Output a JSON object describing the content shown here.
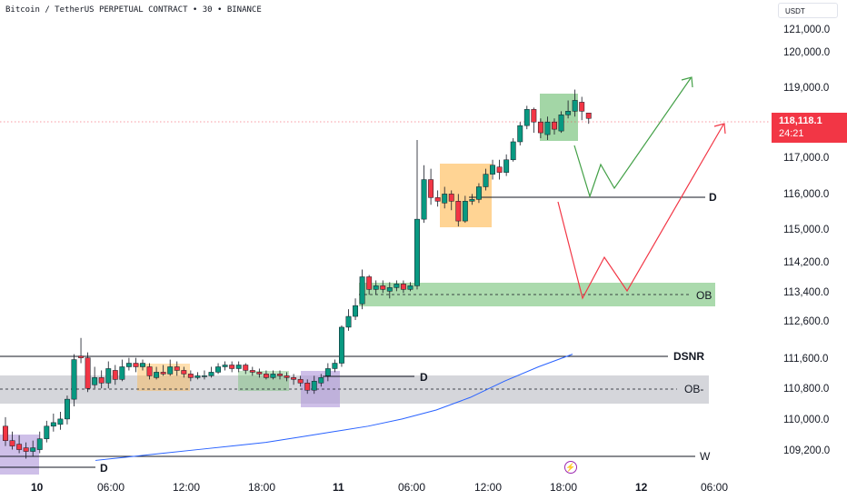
{
  "header": {
    "title": "Bitcoin / TetherUS PERPETUAL CONTRACT • 30 • BINANCE",
    "currency": "USDT"
  },
  "price_badge": {
    "price": "118,118.1",
    "countdown": "24:21"
  },
  "y_axis": [
    "121,000.0",
    "120,000.0",
    "119,000.0",
    "117,000.0",
    "116,000.0",
    "115,000.0",
    "114,200.0",
    "113,400.0",
    "112,600.0",
    "111,600.0",
    "110,800.0",
    "110,000.0",
    "109,200.0"
  ],
  "x_axis": [
    {
      "label": "10",
      "bold": true
    },
    {
      "label": "06:00",
      "bold": false
    },
    {
      "label": "12:00",
      "bold": false
    },
    {
      "label": "18:00",
      "bold": false
    },
    {
      "label": "11",
      "bold": true
    },
    {
      "label": "06:00",
      "bold": false
    },
    {
      "label": "12:00",
      "bold": false
    },
    {
      "label": "18:00",
      "bold": false
    },
    {
      "label": "12",
      "bold": true
    },
    {
      "label": "06:00",
      "bold": false
    }
  ],
  "levels": {
    "d_upper": "D",
    "ob_upper": "OB",
    "dsnr": "DSNR",
    "d_mid": "D",
    "ob_minus": "OB-",
    "w": "W",
    "d_low": "D"
  },
  "colors": {
    "up": "#089981",
    "down": "#f23645",
    "green_zone": "#66bb6a",
    "orange_zone": "#ffb74d",
    "purple_zone": "#b39ddb",
    "grey_zone": "#b2b5be",
    "ma_line": "#2962ff",
    "bull_path": "#43a047",
    "bear_path": "#f23645"
  },
  "icons": {
    "event": "lightning-icon"
  },
  "chart_data": {
    "type": "candlestick",
    "title": "Bitcoin / TetherUS PERPETUAL CONTRACT • 30 • BINANCE",
    "timeframe": "30",
    "last_price": 118118.1,
    "levels": [
      {
        "name": "D",
        "price": 116050
      },
      {
        "name": "OB",
        "price": 113400
      },
      {
        "name": "DSNR",
        "price": 111700
      },
      {
        "name": "D",
        "price": 111200
      },
      {
        "name": "OB-",
        "price": 110800
      },
      {
        "name": "W",
        "price": 109200
      },
      {
        "name": "D",
        "price": 109000
      }
    ],
    "ylim": [
      108600,
      121200
    ],
    "candles": [
      [
        109.55,
        109.15,
        109.8,
        109.0
      ],
      [
        109.15,
        109.0,
        109.4,
        108.9
      ],
      [
        109.05,
        108.9,
        109.3,
        108.8
      ],
      [
        108.95,
        108.85,
        109.1,
        108.65
      ],
      [
        108.85,
        108.95,
        109.15,
        108.7
      ],
      [
        108.9,
        109.2,
        109.4,
        108.8
      ],
      [
        109.2,
        109.55,
        109.7,
        109.1
      ],
      [
        109.55,
        109.65,
        109.9,
        109.4
      ],
      [
        109.6,
        109.75,
        109.95,
        109.45
      ],
      [
        109.75,
        110.3,
        110.4,
        109.6
      ],
      [
        110.3,
        111.4,
        111.55,
        110.1
      ],
      [
        111.5,
        111.45,
        112.0,
        111.3
      ],
      [
        111.45,
        110.6,
        111.6,
        110.5
      ],
      [
        110.7,
        110.9,
        111.2,
        110.6
      ],
      [
        110.9,
        110.75,
        111.1,
        110.6
      ],
      [
        110.75,
        111.15,
        111.35,
        110.6
      ],
      [
        111.1,
        110.85,
        111.25,
        110.7
      ],
      [
        110.85,
        111.2,
        111.4,
        110.8
      ],
      [
        111.2,
        111.3,
        111.45,
        111.1
      ],
      [
        111.3,
        111.2,
        111.45,
        111.05
      ],
      [
        111.2,
        111.3,
        111.4,
        111.1
      ],
      [
        111.2,
        110.95,
        111.3,
        110.85
      ],
      [
        110.9,
        111.05,
        111.2,
        110.85
      ],
      [
        111.05,
        111.0,
        111.25,
        110.95
      ],
      [
        111.0,
        111.2,
        111.4,
        110.95
      ],
      [
        111.2,
        111.1,
        111.35,
        110.95
      ],
      [
        111.1,
        111.0,
        111.2,
        110.9
      ],
      [
        111.0,
        110.9,
        111.1,
        110.8
      ],
      [
        110.9,
        110.95,
        111.05,
        110.85
      ],
      [
        110.95,
        110.95,
        111.1,
        110.85
      ],
      [
        110.95,
        111.05,
        111.2,
        110.9
      ],
      [
        111.05,
        111.2,
        111.3,
        111.0
      ],
      [
        111.2,
        111.25,
        111.35,
        111.1
      ],
      [
        111.25,
        111.15,
        111.35,
        111.05
      ],
      [
        111.15,
        111.25,
        111.35,
        111.05
      ],
      [
        111.25,
        111.1,
        111.3,
        111.0
      ],
      [
        111.1,
        111.05,
        111.2,
        110.95
      ],
      [
        111.05,
        111.0,
        111.15,
        110.9
      ],
      [
        111.0,
        110.9,
        111.1,
        110.85
      ],
      [
        110.9,
        111.0,
        111.1,
        110.85
      ],
      [
        111.0,
        110.95,
        111.1,
        110.85
      ],
      [
        110.95,
        110.9,
        111.05,
        110.8
      ],
      [
        110.9,
        110.85,
        111.0,
        110.7
      ],
      [
        110.85,
        110.75,
        110.95,
        110.65
      ],
      [
        110.75,
        110.55,
        110.85,
        110.45
      ],
      [
        110.55,
        110.8,
        110.95,
        110.45
      ],
      [
        110.75,
        110.9,
        111.0,
        110.65
      ],
      [
        110.95,
        111.15,
        111.3,
        110.8
      ],
      [
        111.15,
        111.3,
        111.4,
        111.05
      ],
      [
        111.3,
        112.3,
        112.35,
        111.2
      ],
      [
        112.3,
        112.6,
        112.8,
        112.2
      ],
      [
        112.6,
        112.9,
        113.1,
        112.5
      ],
      [
        112.95,
        113.7,
        113.9,
        112.8
      ],
      [
        113.7,
        113.35,
        113.75,
        113.2
      ],
      [
        113.35,
        113.45,
        113.6,
        113.2
      ],
      [
        113.45,
        113.35,
        113.6,
        113.25
      ],
      [
        113.3,
        113.4,
        113.55,
        113.1
      ],
      [
        113.4,
        113.5,
        113.6,
        113.3
      ],
      [
        113.5,
        113.35,
        113.6,
        113.25
      ],
      [
        113.35,
        113.45,
        113.55,
        113.3
      ],
      [
        113.45,
        115.3,
        117.5,
        113.35
      ],
      [
        115.3,
        116.4,
        116.8,
        115.2
      ],
      [
        116.4,
        115.9,
        116.7,
        115.7
      ],
      [
        115.9,
        115.8,
        116.1,
        115.65
      ],
      [
        115.75,
        116.0,
        116.2,
        115.6
      ],
      [
        116.0,
        115.8,
        116.1,
        115.55
      ],
      [
        115.8,
        115.25,
        116.0,
        115.1
      ],
      [
        115.25,
        115.8,
        115.95,
        115.2
      ],
      [
        115.8,
        115.85,
        116.0,
        115.7
      ],
      [
        115.85,
        116.2,
        116.3,
        115.75
      ],
      [
        116.2,
        116.55,
        116.7,
        116.1
      ],
      [
        116.55,
        116.8,
        116.95,
        116.4
      ],
      [
        116.75,
        116.6,
        116.95,
        116.4
      ],
      [
        116.6,
        116.95,
        117.1,
        116.5
      ],
      [
        116.95,
        117.45,
        117.55,
        116.9
      ],
      [
        117.45,
        117.9,
        118.0,
        117.35
      ],
      [
        117.9,
        118.35,
        118.45,
        117.8
      ],
      [
        118.35,
        118.0,
        118.4,
        117.7
      ],
      [
        118.0,
        117.7,
        118.1,
        117.55
      ],
      [
        117.65,
        118.0,
        118.15,
        117.5
      ],
      [
        118.0,
        117.8,
        118.1,
        117.65
      ],
      [
        117.75,
        118.2,
        118.3,
        117.7
      ],
      [
        118.2,
        118.3,
        118.6,
        118.1
      ],
      [
        118.3,
        118.6,
        118.9,
        118.15
      ],
      [
        118.55,
        118.3,
        118.7,
        118.05
      ],
      [
        118.25,
        118.1,
        118.25,
        117.95
      ]
    ],
    "ma": [
      [
        0,
        108.6
      ],
      [
        1,
        108.7
      ],
      [
        2,
        108.8
      ],
      [
        3,
        108.9
      ],
      [
        4,
        109.0
      ],
      [
        5,
        109.1
      ],
      [
        6,
        109.25
      ],
      [
        7,
        109.4
      ],
      [
        8,
        109.55
      ],
      [
        9,
        109.75
      ],
      [
        10,
        110.0
      ],
      [
        11,
        110.35
      ],
      [
        12,
        110.8
      ],
      [
        13,
        111.2
      ],
      [
        14,
        111.55
      ]
    ],
    "projections": [
      {
        "name": "bullish",
        "points": [
          [
            0,
            117.5
          ],
          [
            0.5,
            116.0
          ],
          [
            1,
            116.9
          ],
          [
            1.5,
            116.1
          ],
          [
            2.5,
            119.3
          ]
        ]
      },
      {
        "name": "bearish",
        "points": [
          [
            0,
            115.95
          ],
          [
            0.5,
            113.25
          ],
          [
            1,
            114.3
          ],
          [
            1.5,
            113.45
          ],
          [
            2.7,
            118.0
          ]
        ]
      }
    ]
  }
}
